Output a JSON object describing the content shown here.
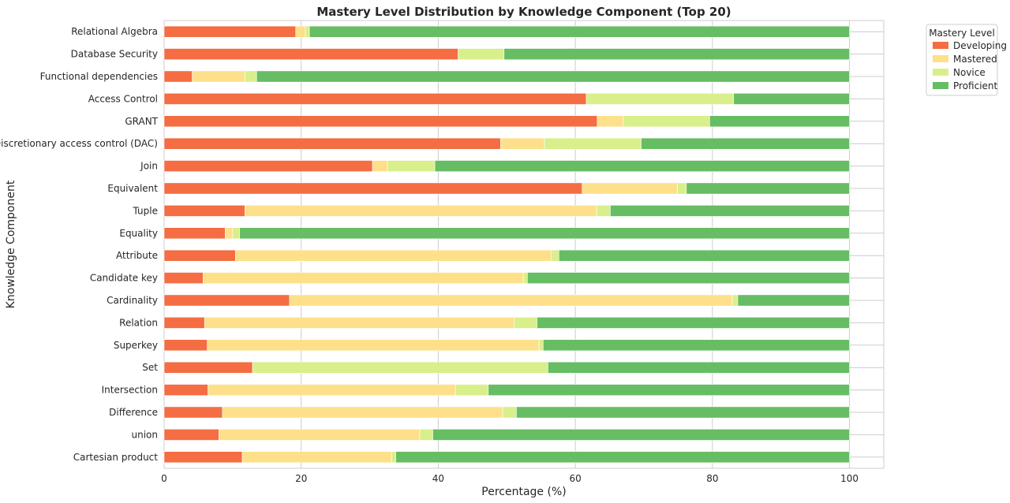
{
  "chart_data": {
    "type": "bar",
    "orientation": "horizontal",
    "stacked": true,
    "title": "Mastery Level Distribution by Knowledge Component (Top 20)",
    "xlabel": "Percentage (%)",
    "ylabel": "Knowledge Component",
    "xlim": [
      0,
      105
    ],
    "xticks": [
      0,
      20,
      40,
      60,
      80,
      100
    ],
    "grid": true,
    "legend_title": "Mastery Level",
    "legend_position": "upper-right-outside",
    "categories": [
      "Relational Algebra",
      "Database Security",
      "Functional dependencies",
      "Access Control",
      "GRANT",
      "Discretionary access control (DAC)",
      "Join",
      "Equivalent",
      "Tuple",
      "Equality",
      "Attribute",
      "Candidate key",
      "Cardinality",
      "Relation",
      "Superkey",
      "Set",
      "Intersection",
      "Difference",
      "union",
      "Cartesian product"
    ],
    "series": [
      {
        "name": "Developing",
        "color": "#f46d43",
        "values": [
          19.2,
          42.9,
          4.1,
          61.6,
          63.2,
          49.1,
          30.4,
          61.0,
          11.8,
          8.9,
          10.4,
          5.7,
          18.3,
          5.9,
          6.3,
          12.9,
          6.4,
          8.5,
          8.0,
          11.4
        ]
      },
      {
        "name": "Mastered",
        "color": "#fee08b",
        "values": [
          1.4,
          0.0,
          7.7,
          0.0,
          3.8,
          6.4,
          2.2,
          13.9,
          51.3,
          1.1,
          46.1,
          46.7,
          64.6,
          45.2,
          48.4,
          0.0,
          36.1,
          40.9,
          29.3,
          21.8
        ]
      },
      {
        "name": "Novice",
        "color": "#d9ef8b",
        "values": [
          0.6,
          6.7,
          1.7,
          21.5,
          12.6,
          14.1,
          6.9,
          1.3,
          2.0,
          1.0,
          1.1,
          0.6,
          0.8,
          3.3,
          0.6,
          43.1,
          4.8,
          2.0,
          1.9,
          0.6
        ]
      },
      {
        "name": "Proficient",
        "color": "#66bd63",
        "values": [
          78.8,
          50.4,
          86.5,
          16.9,
          20.4,
          30.4,
          60.5,
          23.8,
          34.9,
          89.0,
          42.4,
          47.0,
          16.3,
          45.6,
          44.7,
          44.0,
          52.7,
          48.6,
          60.8,
          66.2
        ]
      }
    ]
  }
}
